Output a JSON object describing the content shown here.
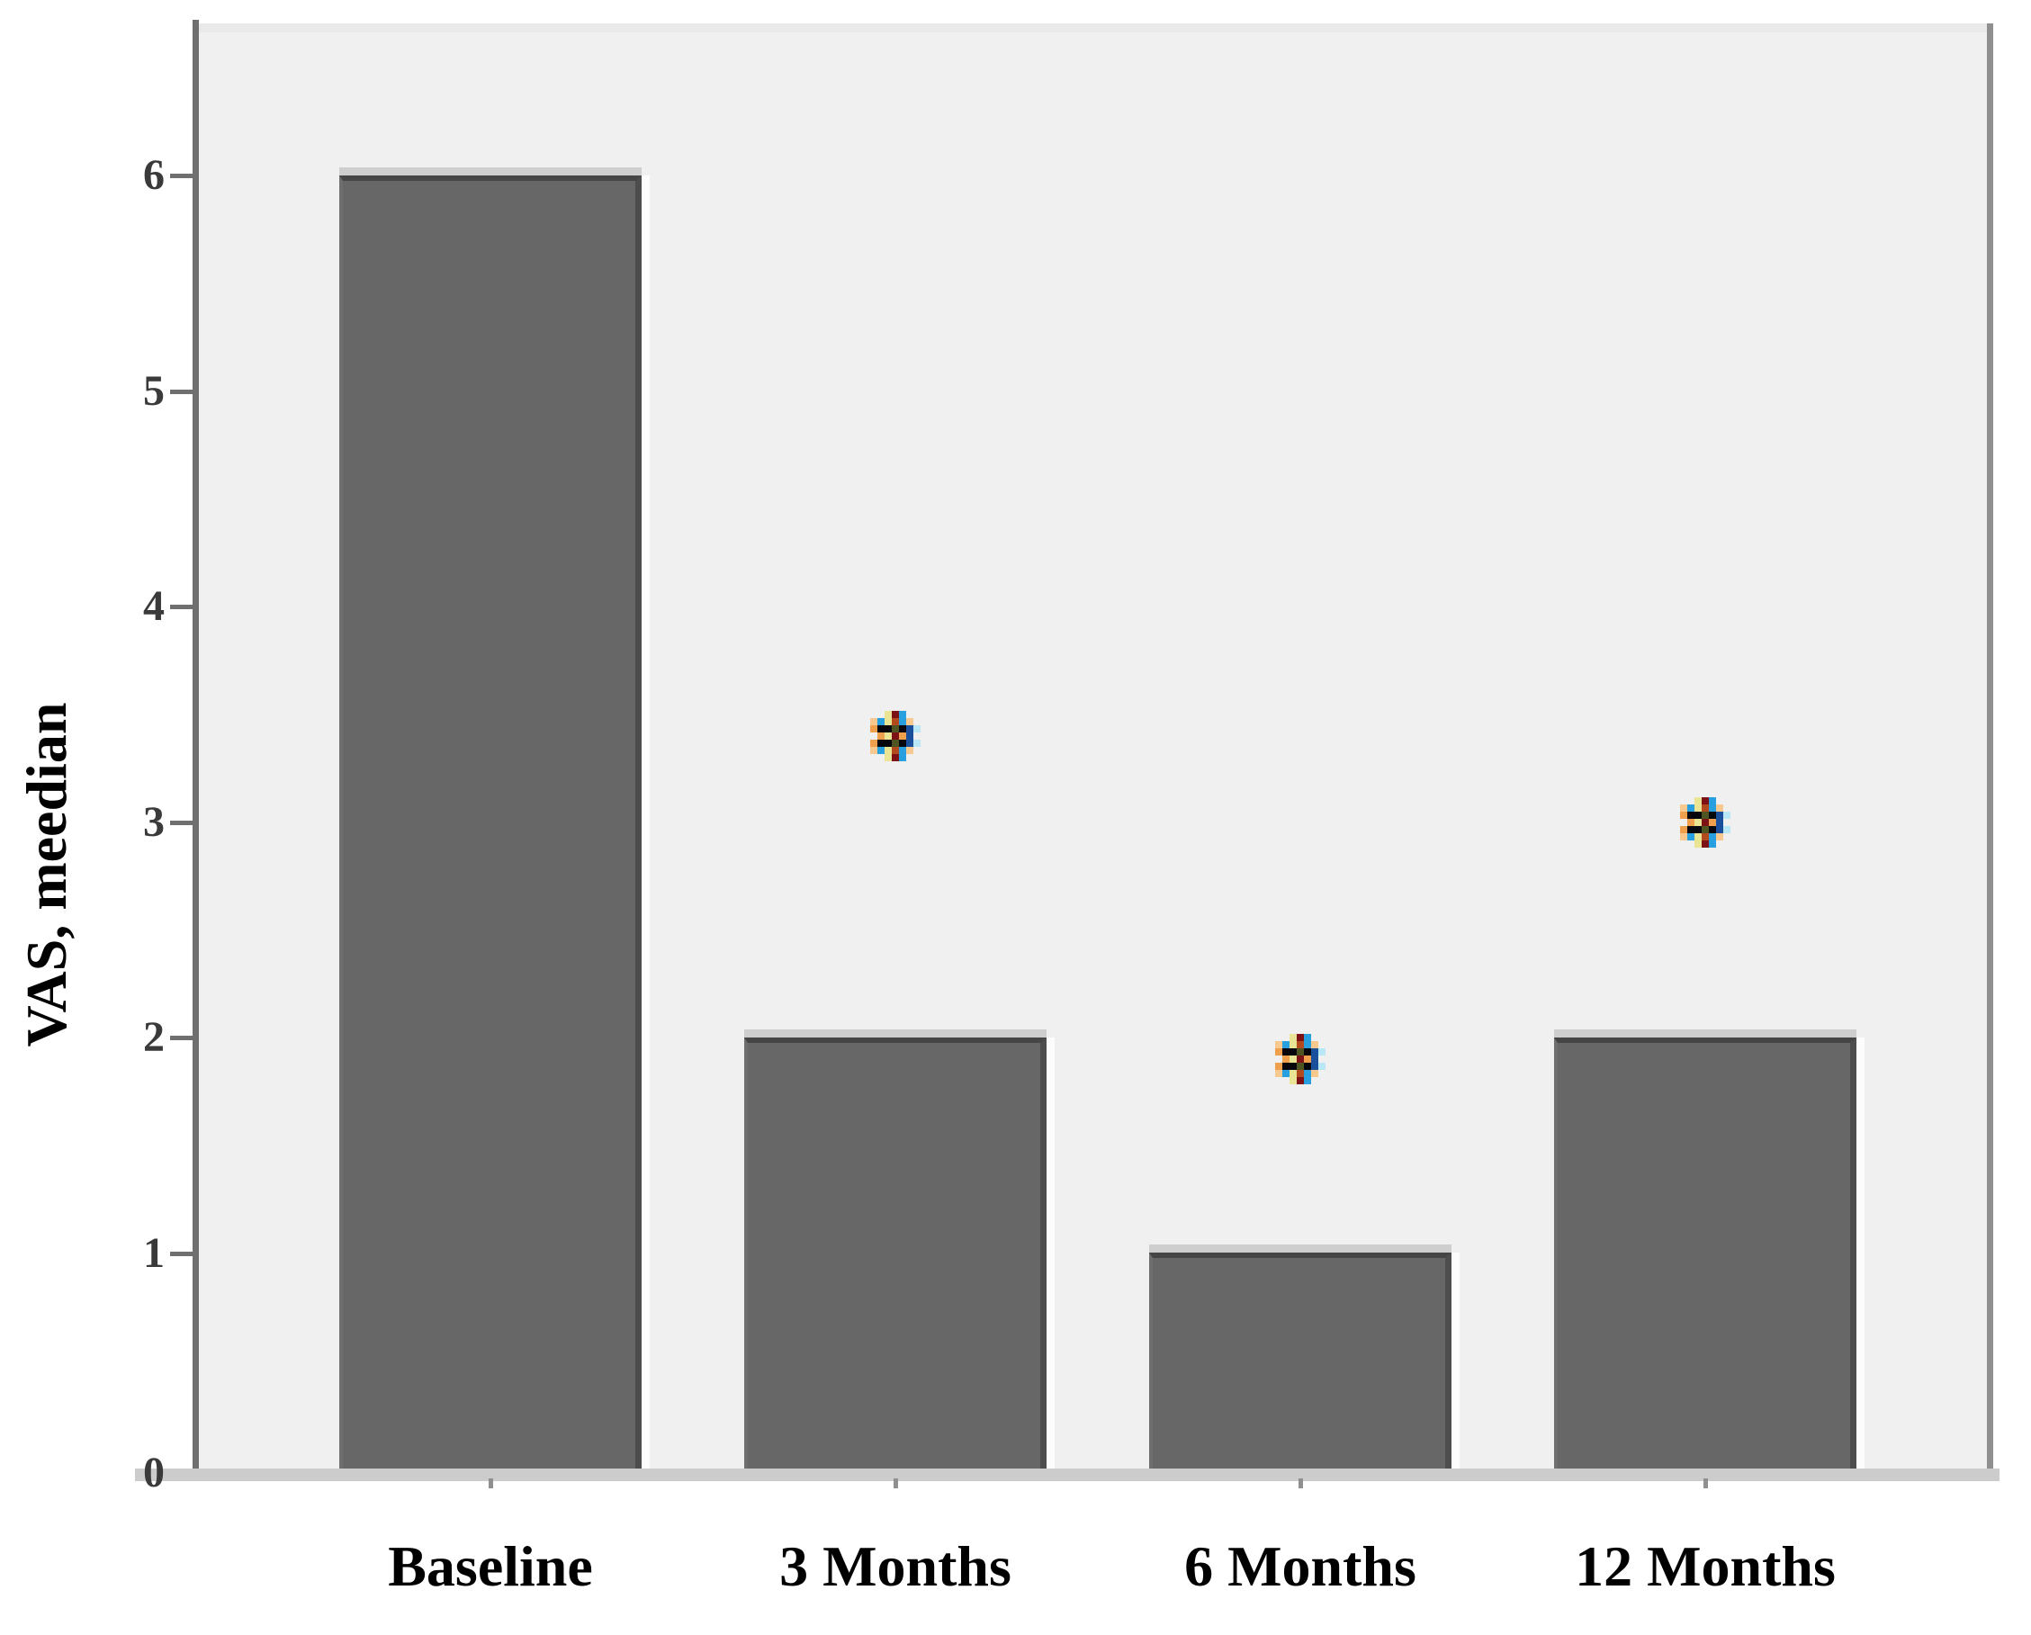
{
  "chart_data": {
    "type": "bar",
    "title": "",
    "ylabel": "VAS, meedian",
    "xlabel": "",
    "categories": [
      "Baseline",
      "3 Months",
      "6 Months",
      "12 Months"
    ],
    "values": [
      6,
      2,
      1,
      2
    ],
    "yticks": [
      0,
      1,
      2,
      3,
      4,
      5,
      6
    ],
    "ylim": [
      0,
      6.7
    ],
    "grid": false,
    "legend": false,
    "bar_color": "#676767",
    "plot_background": "#f0f0f0",
    "annotations": [
      {
        "category": "3 Months",
        "value": 3.4,
        "symbol": "asterisk"
      },
      {
        "category": "6 Months",
        "value": 1.9,
        "symbol": "asterisk"
      },
      {
        "category": "12 Months",
        "value": 3.0,
        "symbol": "asterisk"
      }
    ]
  }
}
